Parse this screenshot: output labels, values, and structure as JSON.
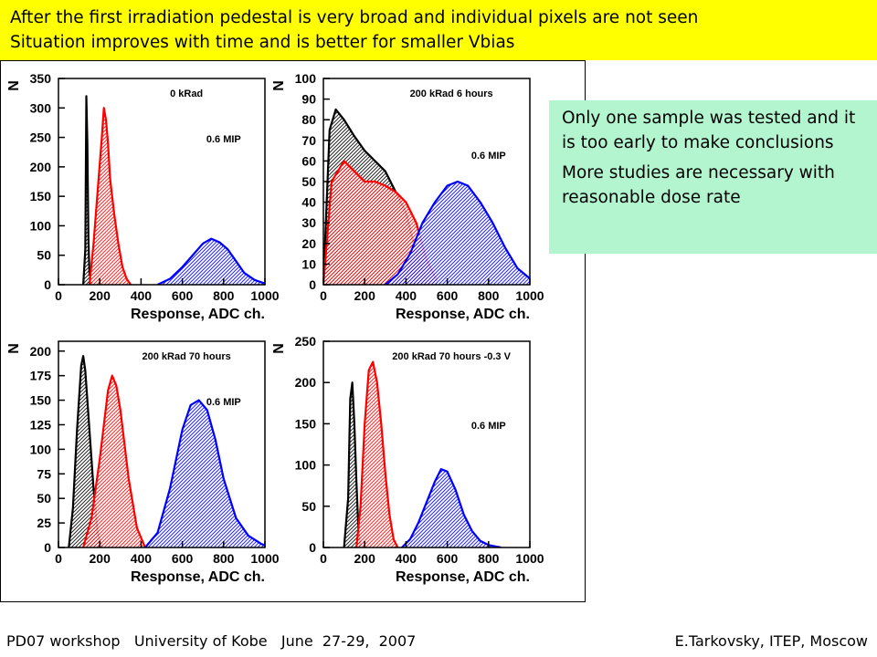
{
  "banner": {
    "line1": "After the first irradiation pedestal is very broad and individual pixels are not seen",
    "line2": "Situation improves with time and is better for smaller Vbias"
  },
  "callout": {
    "p1": "Only one sample was tested and it is too early to make conclusions",
    "p2": "More studies are necessary with reasonable dose rate"
  },
  "footer": {
    "left": "PD07 workshop   University of Kobe   June  27-29,  2007",
    "right": "E.Tarkovsky, ITEP, Moscow"
  },
  "colors": {
    "banner": "#ffff00",
    "callout": "#b3f5cf",
    "black": "#000000",
    "red": "#ff0000",
    "blue": "#0000ff"
  },
  "chart_data": [
    {
      "type": "area",
      "title": "0 kRad",
      "annotation": "0.6 MIP",
      "xlabel": "Response, ADC ch.",
      "ylabel": "N",
      "xlim": [
        0,
        1000
      ],
      "ylim": [
        0,
        350
      ],
      "xticks": [
        0,
        200,
        400,
        600,
        800,
        1000
      ],
      "yticks": [
        0,
        50,
        100,
        150,
        200,
        250,
        300,
        350
      ],
      "series": [
        {
          "color": "#000000",
          "x": [
            120,
            130,
            135,
            140,
            145,
            150,
            160
          ],
          "y": [
            0,
            60,
            320,
            240,
            80,
            20,
            0
          ]
        },
        {
          "color": "#ff0000",
          "x": [
            150,
            170,
            190,
            210,
            220,
            230,
            240,
            250,
            270,
            290,
            310,
            330,
            350
          ],
          "y": [
            0,
            70,
            160,
            250,
            300,
            280,
            240,
            180,
            120,
            70,
            30,
            10,
            0
          ]
        },
        {
          "color": "#0000ff",
          "x": [
            480,
            540,
            600,
            650,
            700,
            740,
            780,
            820,
            860,
            900,
            950,
            1000
          ],
          "y": [
            0,
            10,
            30,
            50,
            70,
            78,
            72,
            60,
            40,
            20,
            8,
            2
          ]
        }
      ]
    },
    {
      "type": "area",
      "title": "200 kRad 6 hours",
      "annotation": "0.6 MIP",
      "xlabel": "Response, ADC ch.",
      "ylabel": "N",
      "xlim": [
        0,
        1000
      ],
      "ylim": [
        0,
        100
      ],
      "xticks": [
        0,
        200,
        400,
        600,
        800,
        1000
      ],
      "yticks": [
        0,
        10,
        20,
        30,
        40,
        50,
        60,
        70,
        80,
        90,
        100
      ],
      "series": [
        {
          "color": "#000000",
          "x": [
            0,
            30,
            60,
            100,
            150,
            200,
            250,
            300,
            350,
            400,
            450,
            500
          ],
          "y": [
            0,
            75,
            85,
            80,
            72,
            65,
            60,
            55,
            45,
            35,
            15,
            2
          ]
        },
        {
          "color": "#ff0000",
          "x": [
            0,
            40,
            100,
            150,
            200,
            250,
            300,
            350,
            400,
            450,
            500,
            550
          ],
          "y": [
            0,
            50,
            60,
            55,
            50,
            50,
            48,
            45,
            40,
            30,
            12,
            2
          ]
        },
        {
          "color": "#0000ff",
          "x": [
            300,
            360,
            420,
            480,
            540,
            600,
            650,
            700,
            760,
            820,
            880,
            940,
            1000
          ],
          "y": [
            0,
            5,
            15,
            30,
            40,
            48,
            50,
            48,
            40,
            30,
            18,
            8,
            3
          ]
        }
      ]
    },
    {
      "type": "area",
      "title": "200 kRad 70 hours",
      "annotation": "0.6 MIP",
      "xlabel": "Response, ADC ch.",
      "ylabel": "N",
      "xlim": [
        0,
        1000
      ],
      "ylim": [
        0,
        210
      ],
      "xticks": [
        0,
        200,
        400,
        600,
        800,
        1000
      ],
      "yticks": [
        0,
        25,
        50,
        75,
        100,
        125,
        150,
        175,
        200
      ],
      "series": [
        {
          "color": "#000000",
          "x": [
            50,
            70,
            90,
            110,
            120,
            130,
            150,
            170,
            190,
            210
          ],
          "y": [
            0,
            40,
            120,
            185,
            195,
            180,
            120,
            60,
            15,
            0
          ]
        },
        {
          "color": "#ff0000",
          "x": [
            120,
            160,
            200,
            240,
            260,
            280,
            300,
            340,
            380,
            420
          ],
          "y": [
            0,
            30,
            90,
            160,
            175,
            165,
            140,
            70,
            20,
            0
          ]
        },
        {
          "color": "#0000ff",
          "x": [
            420,
            480,
            540,
            600,
            640,
            680,
            720,
            760,
            800,
            860,
            920,
            980,
            1000
          ],
          "y": [
            0,
            15,
            60,
            120,
            145,
            150,
            140,
            110,
            70,
            30,
            12,
            4,
            2
          ]
        }
      ]
    },
    {
      "type": "area",
      "title": "200 kRad 70 hours -0.3 V",
      "annotation": "0.6 MIP",
      "xlabel": "Response, ADC ch.",
      "ylabel": "N",
      "xlim": [
        0,
        1000
      ],
      "ylim": [
        0,
        250
      ],
      "xticks": [
        0,
        200,
        400,
        600,
        800,
        1000
      ],
      "yticks": [
        0,
        50,
        100,
        150,
        200,
        250
      ],
      "series": [
        {
          "color": "#000000",
          "x": [
            100,
            120,
            130,
            140,
            150,
            160,
            170,
            180
          ],
          "y": [
            0,
            60,
            180,
            200,
            150,
            80,
            20,
            0
          ]
        },
        {
          "color": "#ff0000",
          "x": [
            160,
            180,
            200,
            220,
            240,
            260,
            280,
            300,
            320,
            340,
            360
          ],
          "y": [
            0,
            50,
            150,
            215,
            225,
            200,
            150,
            90,
            40,
            10,
            0
          ]
        },
        {
          "color": "#0000ff",
          "x": [
            380,
            420,
            460,
            500,
            540,
            570,
            600,
            640,
            680,
            720,
            760,
            800,
            860
          ],
          "y": [
            0,
            10,
            30,
            55,
            80,
            95,
            92,
            70,
            40,
            20,
            8,
            3,
            0
          ]
        }
      ]
    }
  ]
}
